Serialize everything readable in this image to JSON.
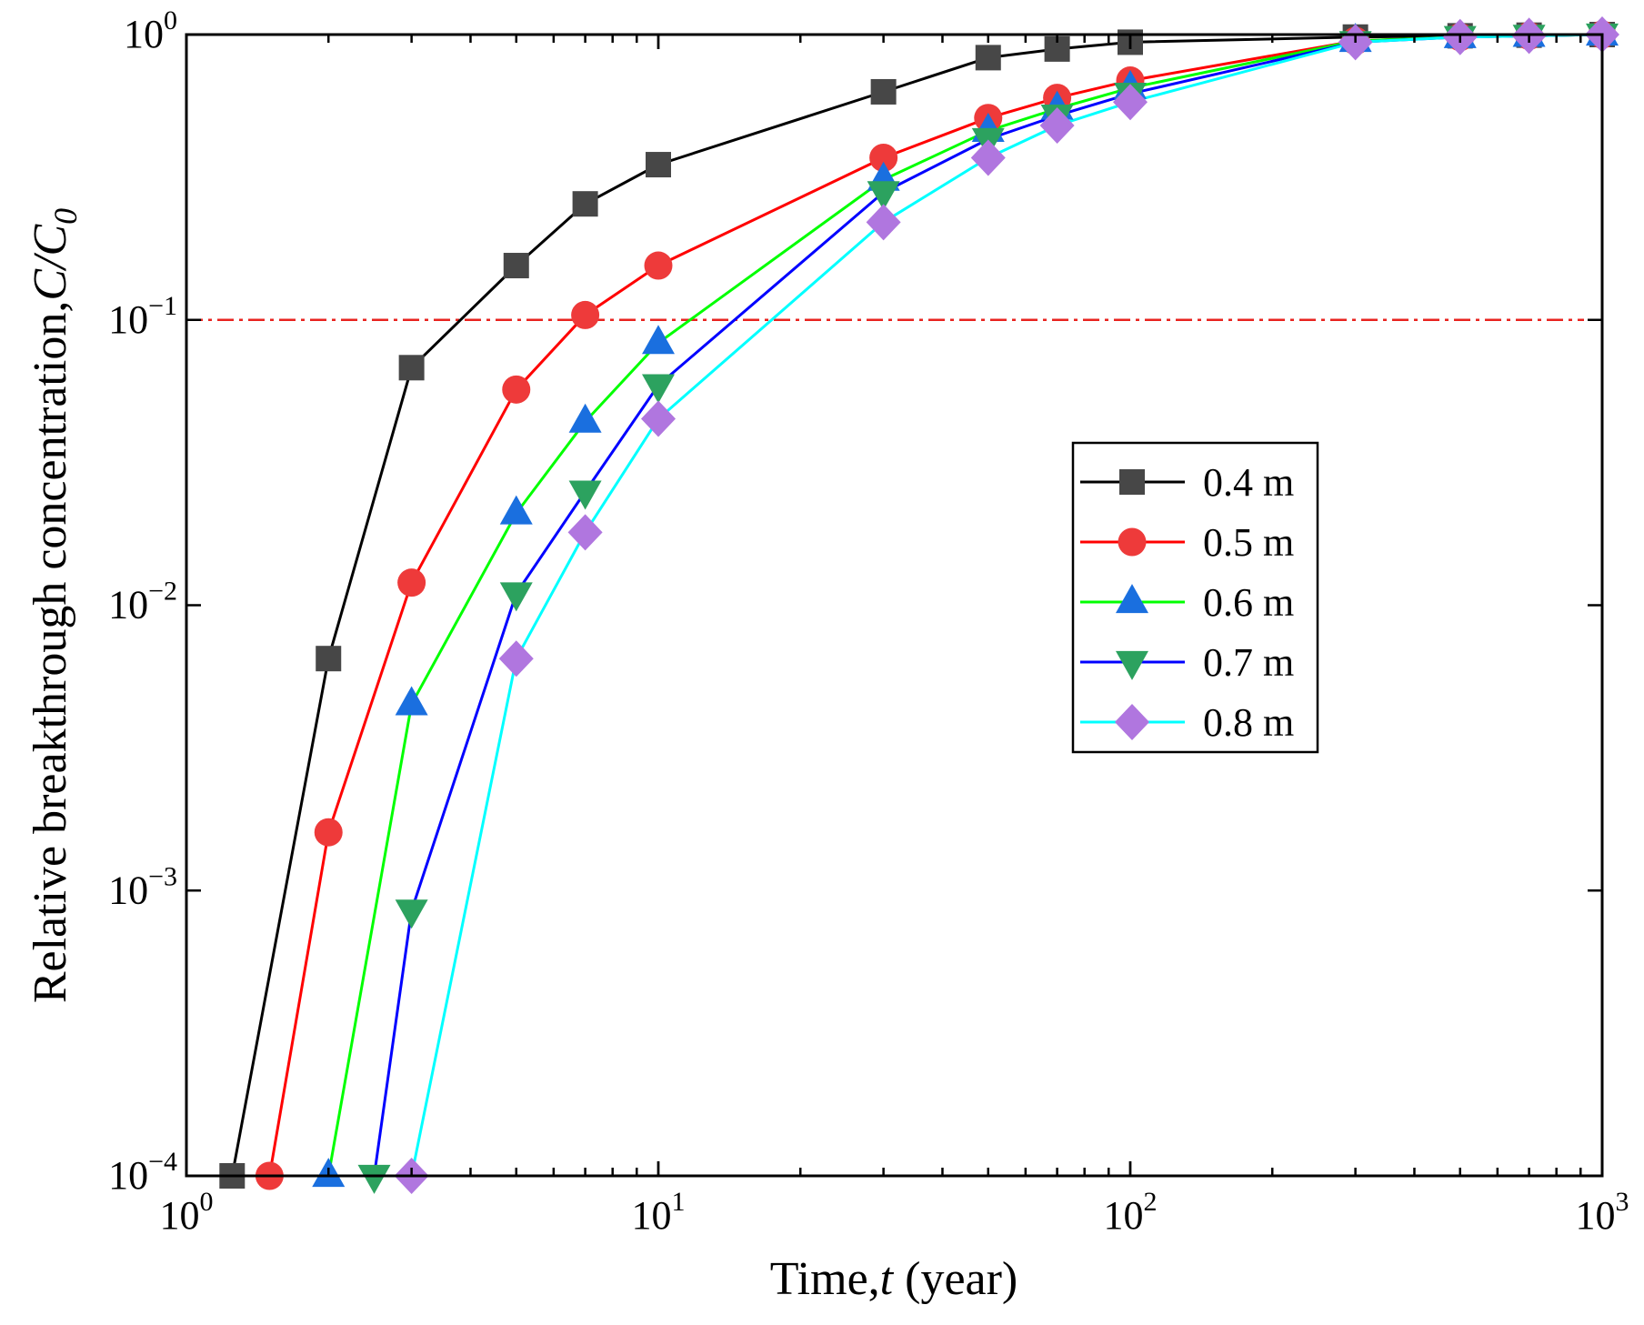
{
  "chart_data": {
    "type": "line",
    "xscale": "log",
    "yscale": "log",
    "xlim": [
      1,
      1000
    ],
    "ylim": [
      0.0001,
      1
    ],
    "xlabel_prefix": "Time,",
    "xlabel_var": "t",
    "xlabel_suffix": " (year)",
    "ylabel_prefix": "Relative breakthrough concentration,",
    "ylabel_var": "C/C",
    "ylabel_sub": "0",
    "x_ticks": [
      {
        "value": 1,
        "base": "10",
        "exp": "0"
      },
      {
        "value": 10,
        "base": "10",
        "exp": "1"
      },
      {
        "value": 100,
        "base": "10",
        "exp": "2"
      },
      {
        "value": 1000,
        "base": "10",
        "exp": "3"
      }
    ],
    "y_ticks": [
      {
        "value": 1,
        "base": "10",
        "exp": "0"
      },
      {
        "value": 0.1,
        "base": "10",
        "exp": "−1"
      },
      {
        "value": 0.01,
        "base": "10",
        "exp": "−2"
      },
      {
        "value": 0.001,
        "base": "10",
        "exp": "−3"
      },
      {
        "value": 0.0001,
        "base": "10",
        "exp": "−4"
      }
    ],
    "threshold": {
      "y": 0.1,
      "color": "#e8231f",
      "style": "dash-dot"
    },
    "legend_position": "center-right",
    "series": [
      {
        "name": "0.4 m",
        "line_color": "#000000",
        "marker": "square",
        "marker_color": "#474747",
        "x": [
          1.25,
          2,
          3,
          5,
          7,
          10,
          30,
          50,
          70,
          100,
          300,
          500,
          700,
          1000
        ],
        "y": [
          0.0001,
          0.0065,
          0.068,
          0.155,
          0.255,
          0.35,
          0.63,
          0.83,
          0.89,
          0.94,
          0.98,
          0.99,
          0.995,
          1.0
        ]
      },
      {
        "name": "0.5 m",
        "line_color": "#ff0000",
        "marker": "circle",
        "marker_color": "#ee3a3a",
        "x": [
          1.5,
          2,
          3,
          5,
          7,
          10,
          30,
          50,
          70,
          100,
          300,
          500,
          700,
          1000
        ],
        "y": [
          0.0001,
          0.0016,
          0.012,
          0.057,
          0.104,
          0.155,
          0.37,
          0.51,
          0.6,
          0.69,
          0.95,
          0.98,
          0.99,
          1.0
        ]
      },
      {
        "name": "0.6 m",
        "line_color": "#00ff00",
        "marker": "triangle-up",
        "marker_color": "#1a6fdf",
        "x": [
          2,
          3,
          5,
          7,
          10,
          30,
          50,
          70,
          100,
          300,
          500,
          700,
          1000
        ],
        "y": [
          0.0001,
          0.0045,
          0.021,
          0.044,
          0.083,
          0.31,
          0.46,
          0.55,
          0.65,
          0.95,
          0.98,
          0.99,
          1.0
        ]
      },
      {
        "name": "0.7 m",
        "line_color": "#0000ff",
        "marker": "triangle-down",
        "marker_color": "#2ca25f",
        "x": [
          2.5,
          3,
          5,
          7,
          10,
          30,
          50,
          70,
          100,
          300,
          500,
          700,
          1000
        ],
        "y": [
          0.0001,
          0.00085,
          0.011,
          0.025,
          0.059,
          0.28,
          0.43,
          0.52,
          0.62,
          0.94,
          0.98,
          0.99,
          1.0
        ]
      },
      {
        "name": "0.8 m",
        "line_color": "#00ffff",
        "marker": "diamond",
        "marker_color": "#b076df",
        "x": [
          3,
          5,
          7,
          10,
          30,
          50,
          70,
          100,
          300,
          500,
          700,
          1000
        ],
        "y": [
          0.0001,
          0.0065,
          0.018,
          0.045,
          0.22,
          0.37,
          0.48,
          0.58,
          0.94,
          0.98,
          0.99,
          1.0
        ]
      }
    ]
  }
}
